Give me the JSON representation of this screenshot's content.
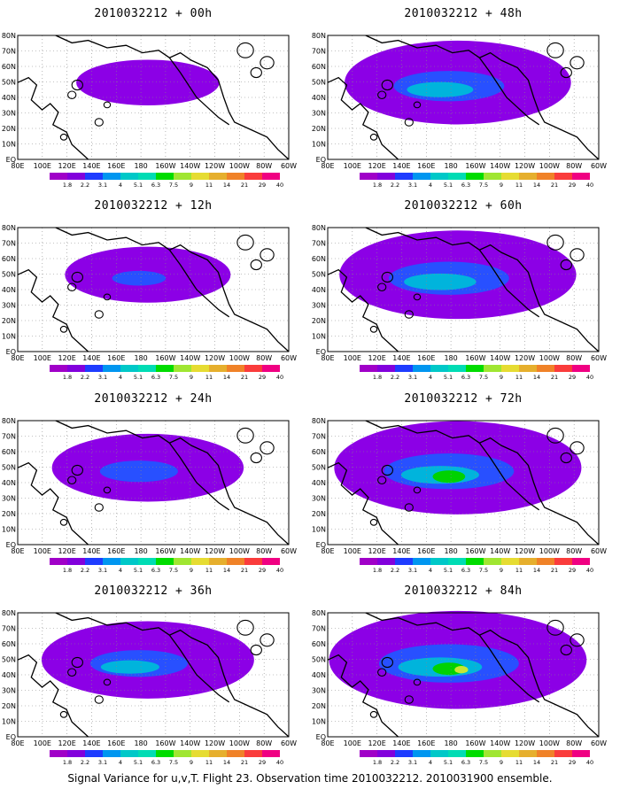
{
  "panels": [
    {
      "title": "2010032212 + 00h",
      "fill": "#8a00e0",
      "cover": 0.2,
      "lead": 0
    },
    {
      "title": "2010032212 + 12h",
      "fill": "#8a00e0",
      "cover": 0.33,
      "lead": 12
    },
    {
      "title": "2010032212 + 24h",
      "fill": "#8a00e0",
      "cover": 0.48,
      "lead": 24
    },
    {
      "title": "2010032212 + 36h",
      "fill": "#8a00e0",
      "cover": 0.6,
      "lead": 36
    },
    {
      "title": "2010032212 + 48h",
      "fill": "#8a00e0",
      "cover": 0.68,
      "lead": 48
    },
    {
      "title": "2010032212 + 60h",
      "fill": "#8a00e0",
      "cover": 0.74,
      "lead": 60
    },
    {
      "title": "2010032212 + 72h",
      "fill": "#8a00e0",
      "cover": 0.8,
      "lead": 72
    },
    {
      "title": "2010032212 + 84h",
      "fill": "#8a00e0",
      "cover": 0.86,
      "lead": 84
    }
  ],
  "lon_labels": [
    "80E",
    "100E",
    "120E",
    "140E",
    "160E",
    "180",
    "160W",
    "140W",
    "120W",
    "100W",
    "80W",
    "60W"
  ],
  "lat_labels": [
    "80N",
    "70N",
    "60N",
    "50N",
    "40N",
    "30N",
    "20N",
    "10N",
    "EQ"
  ],
  "colorbar": {
    "labels": [
      "1.8",
      "2.2",
      "3.1",
      "4",
      "5.1",
      "6.3",
      "7.5",
      "9",
      "11",
      "14",
      "21",
      "29",
      "40"
    ],
    "colors": [
      "#a000c8",
      "#8200dc",
      "#1e3cff",
      "#0096f0",
      "#00c8c8",
      "#00dcb4",
      "#00dc00",
      "#a0e632",
      "#e6dc32",
      "#e6af2d",
      "#f08228",
      "#fa3c3c",
      "#f00082"
    ]
  },
  "footer": "Signal Variance for u,v,T. Flight 23. Observation time 2010032212. 2010031900 ensemble."
}
